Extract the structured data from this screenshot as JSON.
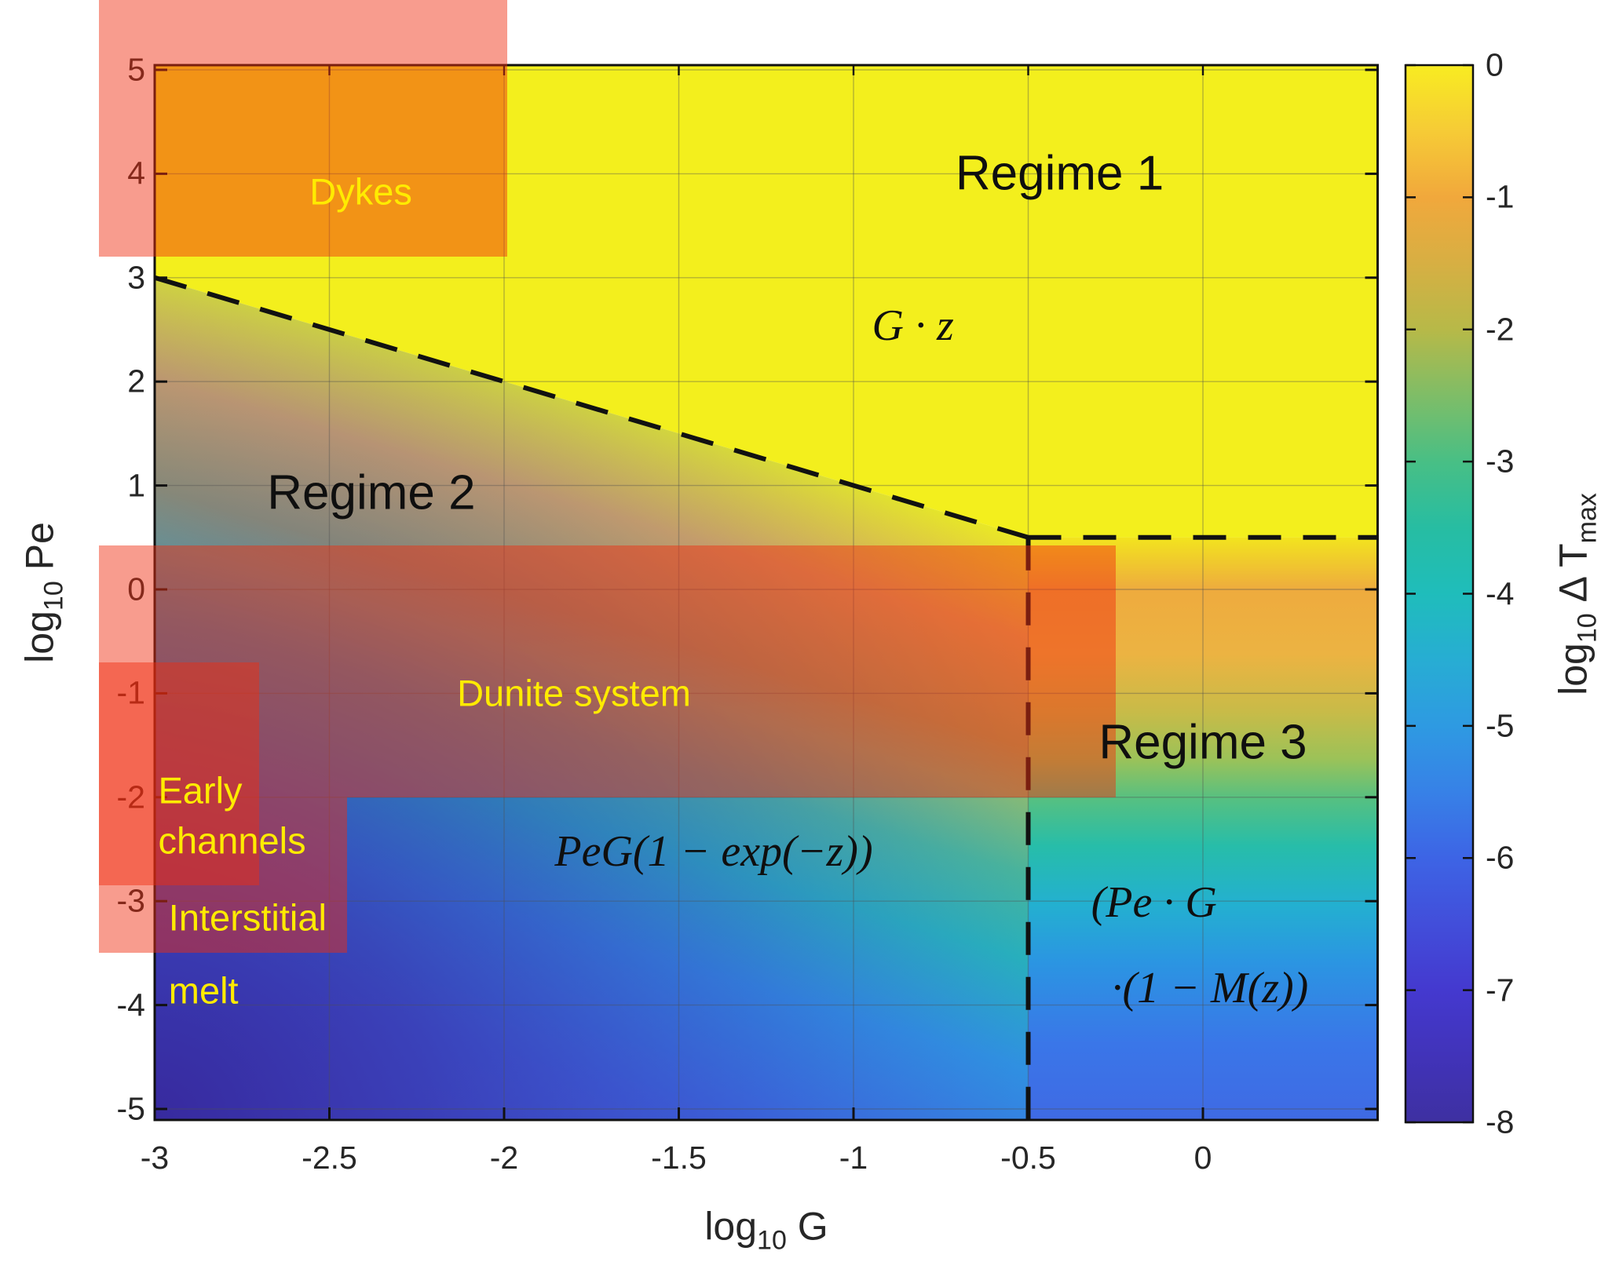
{
  "chart_data": {
    "type": "heatmap",
    "title": "",
    "xlabel": {
      "pre": "log",
      "sub": "10",
      "post": " G"
    },
    "ylabel": {
      "pre": "log",
      "sub": "10",
      "post": " Pe"
    },
    "x_axis": {
      "range": [
        -3,
        0.5
      ],
      "ticks": [
        {
          "v": -3,
          "label": "-3"
        },
        {
          "v": -2.5,
          "label": "-2.5"
        },
        {
          "v": -2,
          "label": "-2"
        },
        {
          "v": -1.5,
          "label": "-1.5"
        },
        {
          "v": -1,
          "label": "-1"
        },
        {
          "v": -0.5,
          "label": "-0.5"
        },
        {
          "v": 0,
          "label": "0"
        }
      ]
    },
    "y_axis": {
      "range": [
        -5.1,
        5.05
      ],
      "ticks": [
        {
          "v": 5,
          "label": "5"
        },
        {
          "v": 4,
          "label": "4"
        },
        {
          "v": 3,
          "label": "3"
        },
        {
          "v": 2,
          "label": "2"
        },
        {
          "v": 1,
          "label": "1"
        },
        {
          "v": 0,
          "label": "0"
        },
        {
          "v": -1,
          "label": "-1"
        },
        {
          "v": -2,
          "label": "-2"
        },
        {
          "v": -3,
          "label": "-3"
        },
        {
          "v": -4,
          "label": "-4"
        },
        {
          "v": -5,
          "label": "-5"
        }
      ]
    },
    "colorbar": {
      "label": {
        "pre": "log",
        "sub": "10",
        "mid": " Δ T",
        "sub2": "max"
      },
      "range": [
        -8,
        0
      ],
      "ticks": [
        {
          "v": 0,
          "label": "0"
        },
        {
          "v": -1,
          "label": "-1"
        },
        {
          "v": -2,
          "label": "-2"
        },
        {
          "v": -3,
          "label": "-3"
        },
        {
          "v": -4,
          "label": "-4"
        },
        {
          "v": -5,
          "label": "-5"
        },
        {
          "v": -6,
          "label": "-6"
        },
        {
          "v": -7,
          "label": "-7"
        },
        {
          "v": -8,
          "label": "-8"
        }
      ],
      "colormap_stops": [
        [
          0,
          "#f8ec21"
        ],
        [
          -0.5,
          "#f6cb36"
        ],
        [
          -1,
          "#f1a83c"
        ],
        [
          -1.5,
          "#d7af43"
        ],
        [
          -2,
          "#b7b948"
        ],
        [
          -2.5,
          "#7fbd67"
        ],
        [
          -3,
          "#48bf85"
        ],
        [
          -3.5,
          "#27bda2"
        ],
        [
          -4,
          "#1fbdbb"
        ],
        [
          -4.5,
          "#27add3"
        ],
        [
          -5,
          "#2e9ae2"
        ],
        [
          -5.5,
          "#3781e7"
        ],
        [
          -6,
          "#3d64e5"
        ],
        [
          -6.5,
          "#424eda"
        ],
        [
          -7,
          "#4439cf"
        ],
        [
          -7.5,
          "#4133b9"
        ],
        [
          -8,
          "#3e30a1"
        ]
      ]
    },
    "regime_boundaries": {
      "line_color": "#111111",
      "line_style": "dashed",
      "diagonal": [
        [
          -3,
          3
        ],
        [
          -0.5,
          0.5
        ]
      ],
      "horizontal": [
        [
          -0.5,
          0.5
        ],
        [
          0.5,
          0.5
        ]
      ],
      "vertical": [
        [
          -0.5,
          0.5
        ],
        [
          -0.5,
          -5.1
        ]
      ]
    },
    "annotations": {
      "regime1": {
        "text": "Regime 1",
        "x": -0.41,
        "y": 4.0,
        "anchor": "center",
        "style": "regime"
      },
      "regime2": {
        "text": "Regime 2",
        "x": -2.38,
        "y": 0.93,
        "anchor": "center",
        "style": "regime"
      },
      "regime3": {
        "text": "Regime 3",
        "x": 0.0,
        "y": -1.47,
        "anchor": "center",
        "style": "regime"
      },
      "formula1": {
        "text": "G · z",
        "x": -0.83,
        "y": 2.54,
        "anchor": "center",
        "style": "math"
      },
      "formula2": {
        "text": "PeG(1 − exp(−z))",
        "x": -1.4,
        "y": -2.52,
        "anchor": "center",
        "style": "math"
      },
      "formula3a": {
        "text": "(Pe · G",
        "x": -0.14,
        "y": -3.01,
        "anchor": "center",
        "style": "math"
      },
      "formula3b": {
        "text": "·(1 − M(z))",
        "x": 0.02,
        "y": -3.84,
        "anchor": "center",
        "style": "math"
      },
      "dykes": {
        "text": "Dykes",
        "x": -2.41,
        "y": 3.83,
        "anchor": "center",
        "style": "overlay"
      },
      "dunite": {
        "text": "Dunite system",
        "x": -1.8,
        "y": -1.0,
        "anchor": "center",
        "style": "overlay"
      },
      "early1": {
        "text": "Early",
        "x": -2.99,
        "y": -1.93,
        "anchor": "left",
        "style": "overlay"
      },
      "early2": {
        "text": "channels",
        "x": -2.99,
        "y": -2.42,
        "anchor": "left",
        "style": "overlay"
      },
      "inter1": {
        "text": "Interstitial",
        "x": -2.96,
        "y": -3.16,
        "anchor": "left",
        "style": "overlay"
      },
      "inter2": {
        "text": "melt",
        "x": -2.96,
        "y": -3.86,
        "anchor": "left",
        "style": "overlay"
      }
    },
    "overlays": {
      "fill_color": "#f02d0f",
      "fill_opacity": 0.47,
      "boxes": {
        "dykes": {
          "x": [
            -3.16,
            -1.99
          ],
          "y": [
            3.2,
            5.8
          ]
        },
        "dunite": {
          "x": [
            -3.16,
            -0.25
          ],
          "y": [
            -2.0,
            0.42
          ]
        },
        "early_channels": {
          "x": [
            -3.16,
            -2.7
          ],
          "y": [
            -2.85,
            -0.7
          ]
        },
        "interstitial_melt": {
          "x": [
            -3.16,
            -2.45
          ],
          "y": [
            -3.5,
            -2.0
          ]
        }
      }
    }
  }
}
